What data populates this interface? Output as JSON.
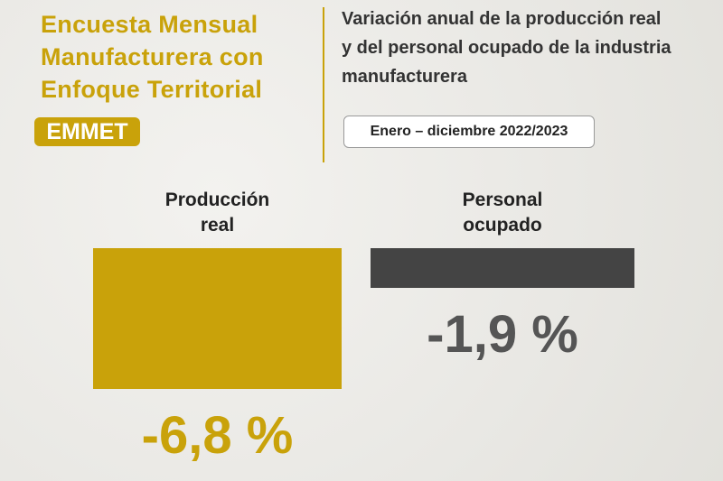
{
  "brand": {
    "title_lines": [
      "Encuesta Mensual",
      "Manufacturera con",
      "Enfoque Territorial"
    ],
    "badge": "EMMET"
  },
  "chart_data": {
    "type": "bar",
    "title_lines": [
      "Variación anual de la producción real",
      "y del personal ocupado de la industria",
      "manufacturera"
    ],
    "subtitle": "Enero – diciembre 2022/2023",
    "categories": [
      "Producción real",
      "Personal ocupado"
    ],
    "values": [
      -6.8,
      -1.9
    ],
    "value_labels": [
      "-6,8 %",
      "-1,9 %"
    ],
    "colors": [
      "#c9a20a",
      "#444444"
    ]
  }
}
